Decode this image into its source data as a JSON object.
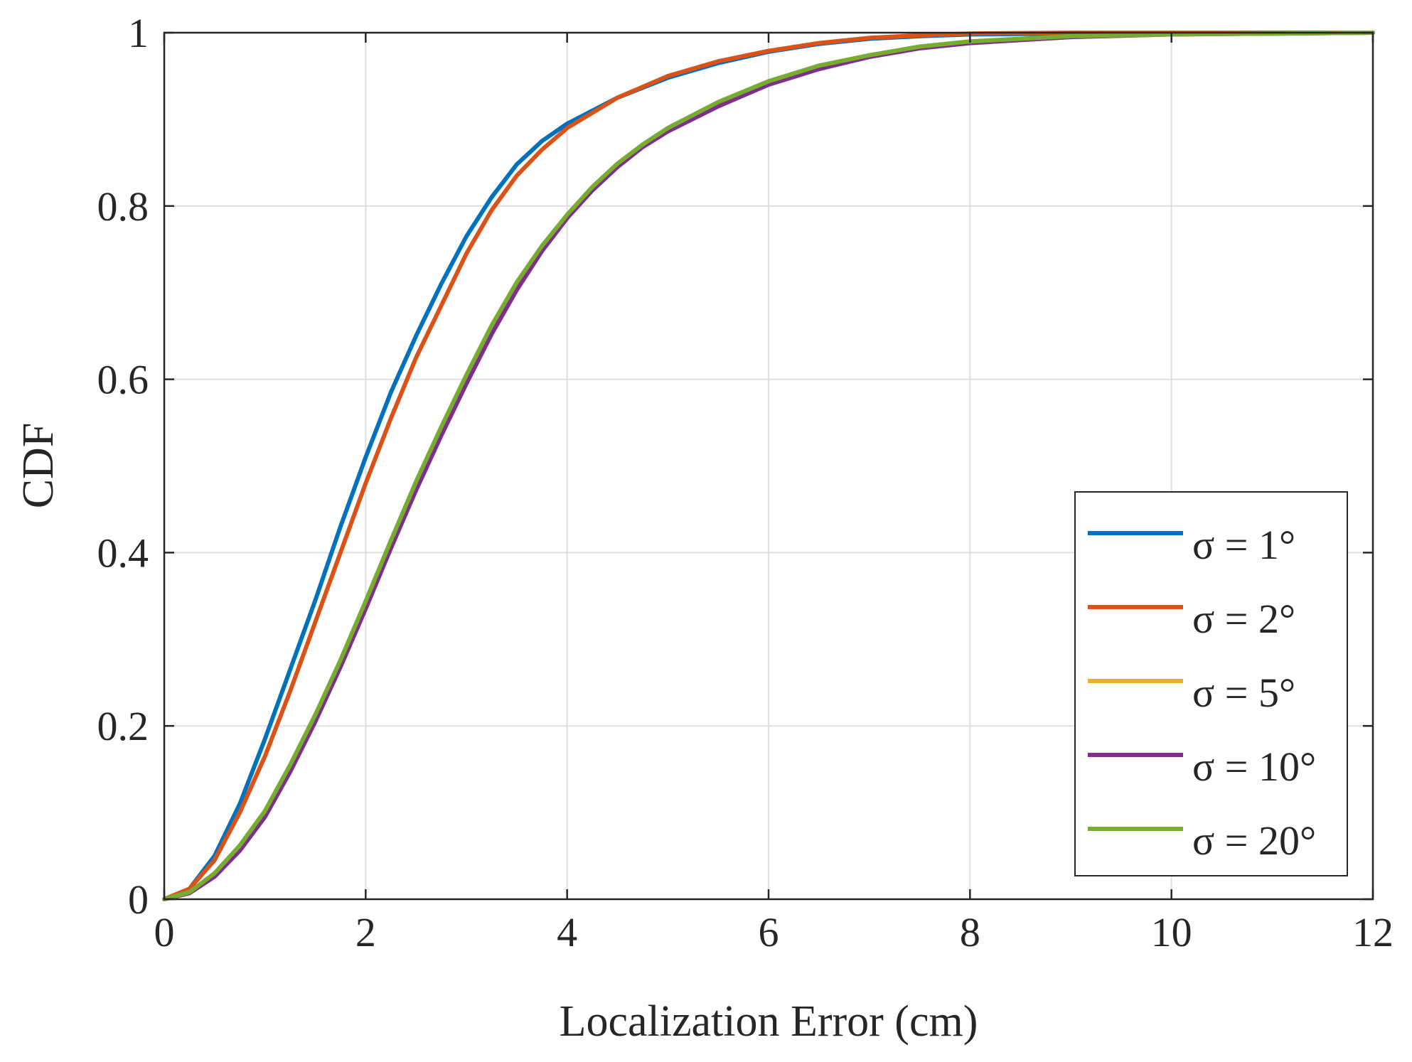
{
  "chart_data": {
    "type": "line",
    "title": "",
    "xlabel": "Localization Error (cm)",
    "ylabel": "CDF",
    "xlim": [
      0,
      12
    ],
    "ylim": [
      0,
      1
    ],
    "xticks": [
      0,
      2,
      4,
      6,
      8,
      10,
      12
    ],
    "yticks": [
      0,
      0.2,
      0.4,
      0.6,
      0.8,
      1
    ],
    "xtick_labels": [
      "0",
      "2",
      "4",
      "6",
      "8",
      "10",
      12
    ],
    "ytick_labels": [
      "0",
      "0.2",
      "0.4",
      "0.6",
      "0.8",
      "1"
    ],
    "grid": true,
    "legend_position": "bottom-right",
    "series": [
      {
        "name": "σ = 1°",
        "color": "#0072BD",
        "x": [
          0,
          0.25,
          0.5,
          0.75,
          1.0,
          1.25,
          1.5,
          1.75,
          2.0,
          2.25,
          2.5,
          2.75,
          3.0,
          3.25,
          3.5,
          3.75,
          4.0,
          4.5,
          5.0,
          5.5,
          6.0,
          6.5,
          7.0,
          7.5,
          8.0,
          9.0,
          10.0,
          11.0,
          12.0
        ],
        "y": [
          0,
          0.012,
          0.05,
          0.11,
          0.185,
          0.265,
          0.345,
          0.43,
          0.51,
          0.585,
          0.65,
          0.71,
          0.765,
          0.81,
          0.848,
          0.875,
          0.895,
          0.925,
          0.948,
          0.965,
          0.978,
          0.987,
          0.993,
          0.996,
          0.998,
          0.999,
          1.0,
          1.0,
          1.0
        ]
      },
      {
        "name": "σ = 2°",
        "color": "#D95319",
        "x": [
          0,
          0.25,
          0.5,
          0.75,
          1.0,
          1.25,
          1.5,
          1.75,
          2.0,
          2.25,
          2.5,
          2.75,
          3.0,
          3.25,
          3.5,
          3.75,
          4.0,
          4.5,
          5.0,
          5.5,
          6.0,
          6.5,
          7.0,
          7.5,
          8.0,
          9.0,
          10.0,
          11.0,
          12.0
        ],
        "y": [
          0,
          0.012,
          0.045,
          0.1,
          0.165,
          0.24,
          0.32,
          0.4,
          0.48,
          0.555,
          0.625,
          0.685,
          0.745,
          0.795,
          0.835,
          0.865,
          0.89,
          0.925,
          0.95,
          0.967,
          0.979,
          0.988,
          0.994,
          0.997,
          0.999,
          1.0,
          1.0,
          1.0,
          1.0
        ]
      },
      {
        "name": "σ = 5°",
        "color": "#EDB120",
        "x": [
          0,
          0.25,
          0.5,
          0.75,
          1.0,
          1.25,
          1.5,
          1.75,
          2.0,
          2.25,
          2.5,
          2.75,
          3.0,
          3.25,
          3.5,
          3.75,
          4.0,
          4.25,
          4.5,
          4.75,
          5.0,
          5.5,
          6.0,
          6.5,
          7.0,
          7.5,
          8.0,
          9.0,
          10.0,
          11.0,
          12.0
        ],
        "y": [
          0,
          0.008,
          0.028,
          0.06,
          0.1,
          0.152,
          0.21,
          0.272,
          0.34,
          0.41,
          0.478,
          0.54,
          0.6,
          0.657,
          0.708,
          0.75,
          0.788,
          0.82,
          0.847,
          0.87,
          0.888,
          0.918,
          0.942,
          0.96,
          0.972,
          0.982,
          0.988,
          0.995,
          0.998,
          0.999,
          1.0
        ]
      },
      {
        "name": "σ = 10°",
        "color": "#7E2F8E",
        "x": [
          0,
          0.25,
          0.5,
          0.75,
          1.0,
          1.25,
          1.5,
          1.75,
          2.0,
          2.25,
          2.5,
          2.75,
          3.0,
          3.25,
          3.5,
          3.75,
          4.0,
          4.25,
          4.5,
          4.75,
          5.0,
          5.5,
          6.0,
          6.5,
          7.0,
          7.5,
          8.0,
          9.0,
          10.0,
          11.0,
          12.0
        ],
        "y": [
          0,
          0.007,
          0.026,
          0.056,
          0.095,
          0.147,
          0.205,
          0.268,
          0.335,
          0.405,
          0.472,
          0.535,
          0.595,
          0.652,
          0.703,
          0.748,
          0.786,
          0.818,
          0.845,
          0.868,
          0.886,
          0.915,
          0.94,
          0.958,
          0.972,
          0.982,
          0.988,
          0.995,
          0.998,
          0.999,
          1.0
        ]
      },
      {
        "name": "σ = 20°",
        "color": "#77AC30",
        "x": [
          0,
          0.25,
          0.5,
          0.75,
          1.0,
          1.25,
          1.5,
          1.75,
          2.0,
          2.25,
          2.5,
          2.75,
          3.0,
          3.25,
          3.5,
          3.75,
          4.0,
          4.25,
          4.5,
          4.75,
          5.0,
          5.5,
          6.0,
          6.5,
          7.0,
          7.5,
          8.0,
          9.0,
          10.0,
          11.0,
          12.0
        ],
        "y": [
          0,
          0.008,
          0.03,
          0.062,
          0.102,
          0.155,
          0.213,
          0.276,
          0.344,
          0.414,
          0.482,
          0.545,
          0.605,
          0.662,
          0.712,
          0.754,
          0.79,
          0.822,
          0.849,
          0.871,
          0.89,
          0.92,
          0.944,
          0.962,
          0.974,
          0.984,
          0.99,
          0.996,
          0.998,
          0.999,
          1.0
        ]
      }
    ]
  }
}
